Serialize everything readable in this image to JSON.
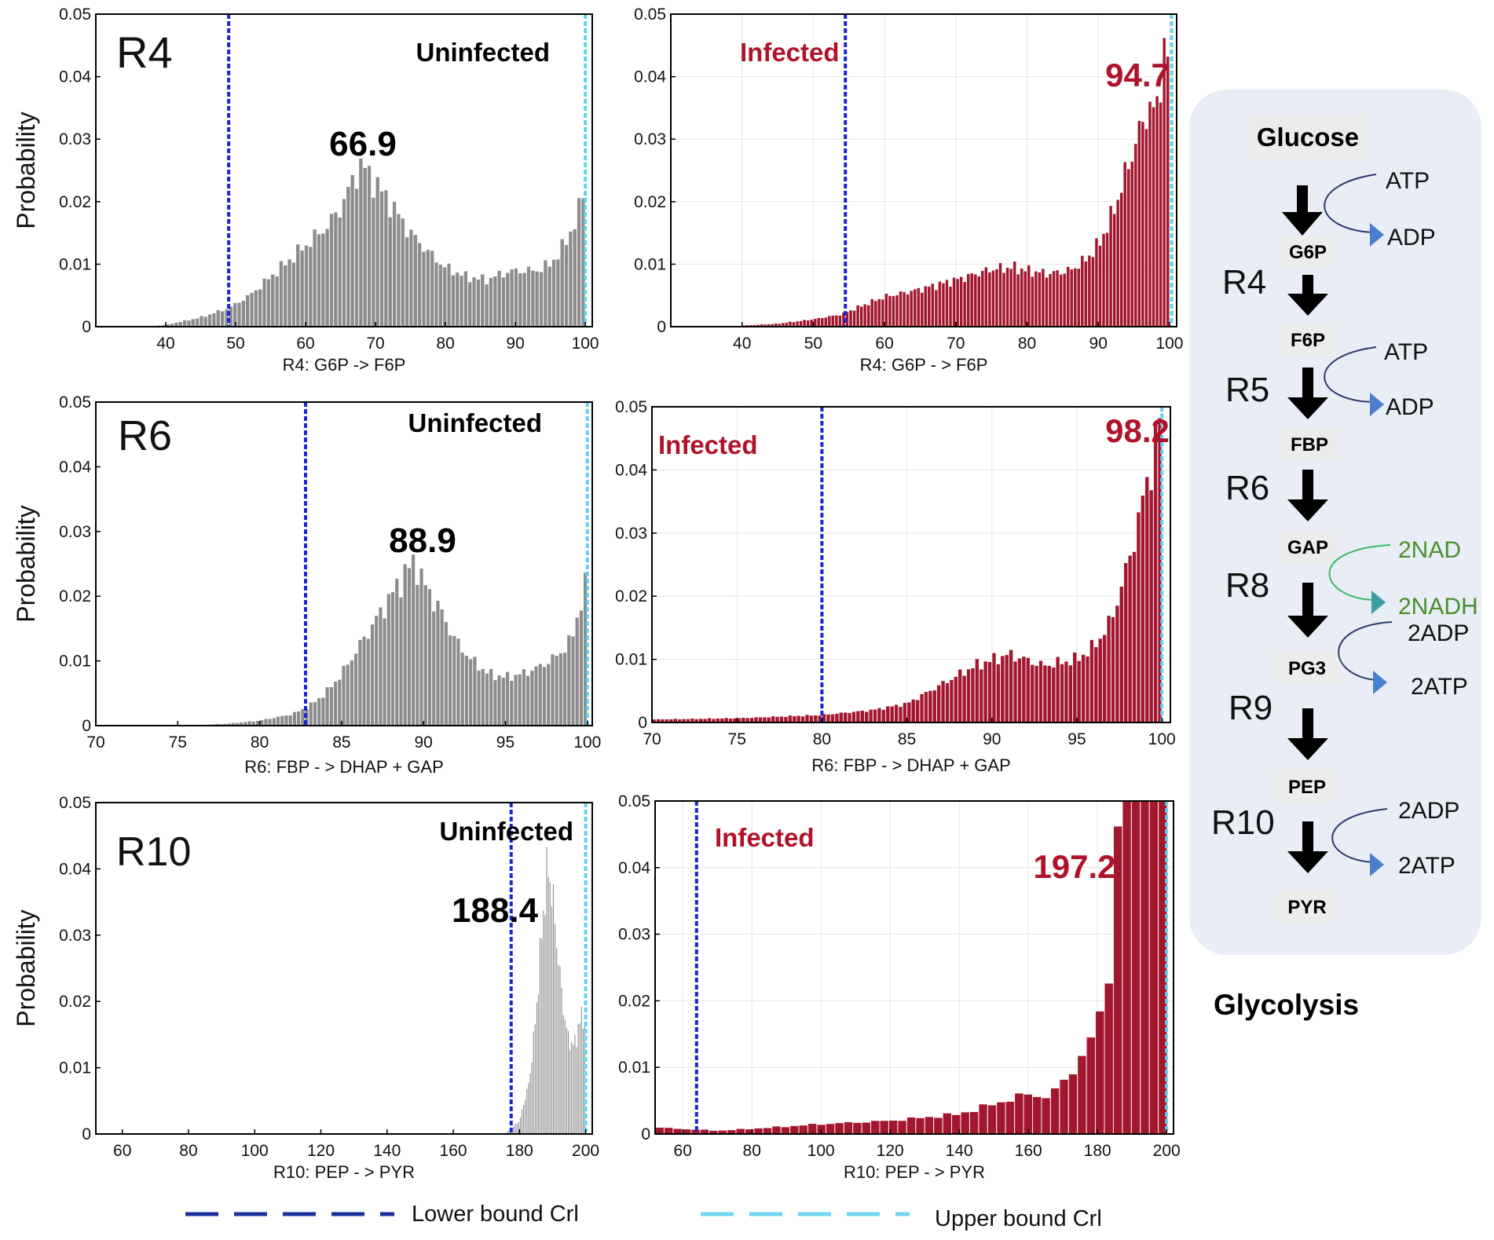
{
  "chart_data": [
    {
      "type": "bar",
      "id": "r4u",
      "panel_label": "R4",
      "condition": "Uninfected",
      "condition_color": "#000000",
      "peak_label": "66.9",
      "peak_color": "#000000",
      "xlabel": "R4: G6P -> F6P",
      "ylabel": "Probability",
      "xlim": [
        30,
        101
      ],
      "ylim": [
        0,
        0.05
      ],
      "xticks": [
        "40",
        "50",
        "60",
        "70",
        "80",
        "90",
        "100"
      ],
      "yticks": [
        "0",
        "0.01",
        "0.02",
        "0.03",
        "0.04",
        "0.05"
      ],
      "color": "#8c8c8c",
      "lower_bound": 49,
      "upper_bound": 100,
      "bin_start": 37,
      "bin_width": 0.6,
      "profile": [
        [
          37,
          0
        ],
        [
          40,
          0.0003
        ],
        [
          45,
          0.0015
        ],
        [
          49,
          0.003
        ],
        [
          52,
          0.005
        ],
        [
          56,
          0.009
        ],
        [
          60,
          0.013
        ],
        [
          63,
          0.016
        ],
        [
          65,
          0.019
        ],
        [
          67,
          0.024
        ],
        [
          68,
          0.026
        ],
        [
          70,
          0.023
        ],
        [
          72,
          0.02
        ],
        [
          75,
          0.015
        ],
        [
          78,
          0.0115
        ],
        [
          80,
          0.0095
        ],
        [
          83,
          0.008
        ],
        [
          86,
          0.0075
        ],
        [
          88,
          0.0085
        ],
        [
          90,
          0.009
        ],
        [
          93,
          0.009
        ],
        [
          95,
          0.01
        ],
        [
          97,
          0.013
        ],
        [
          99,
          0.018
        ],
        [
          100,
          0.023
        ]
      ]
    },
    {
      "type": "bar",
      "id": "r4i",
      "panel_label": "",
      "condition": "Infected",
      "condition_color": "#b0122a",
      "peak_label": "94.7",
      "peak_color": "#b0122a",
      "xlabel": "R4: G6P - > F6P",
      "ylabel": "",
      "xlim": [
        30,
        101
      ],
      "ylim": [
        0,
        0.05
      ],
      "xticks": [
        "40",
        "50",
        "60",
        "70",
        "80",
        "90",
        "100"
      ],
      "yticks": [
        "0",
        "0.01",
        "0.02",
        "0.03",
        "0.04",
        "0.05"
      ],
      "color": "#a3172e",
      "lower_bound": 54.5,
      "upper_bound": 100.3,
      "bin_start": 40,
      "bin_width": 0.5,
      "profile": [
        [
          40,
          0.0002
        ],
        [
          45,
          0.0005
        ],
        [
          50,
          0.0012
        ],
        [
          54,
          0.002
        ],
        [
          56,
          0.003
        ],
        [
          60,
          0.0048
        ],
        [
          65,
          0.006
        ],
        [
          70,
          0.0075
        ],
        [
          75,
          0.0092
        ],
        [
          78,
          0.0095
        ],
        [
          80,
          0.009
        ],
        [
          83,
          0.0085
        ],
        [
          86,
          0.009
        ],
        [
          88,
          0.0105
        ],
        [
          90,
          0.013
        ],
        [
          92,
          0.018
        ],
        [
          94,
          0.025
        ],
        [
          96,
          0.032
        ],
        [
          97,
          0.035
        ],
        [
          98,
          0.034
        ],
        [
          99,
          0.042
        ],
        [
          99.6,
          0.045
        ],
        [
          100,
          0.04
        ]
      ]
    },
    {
      "type": "bar",
      "id": "r6u",
      "panel_label": "R6",
      "condition": "Uninfected",
      "condition_color": "#000000",
      "peak_label": "88.9",
      "peak_color": "#000000",
      "xlabel": "R6: FBP - > DHAP + GAP",
      "ylabel": "Probability",
      "xlim": [
        70,
        100.3
      ],
      "ylim": [
        0,
        0.05
      ],
      "xticks": [
        "70",
        "75",
        "80",
        "85",
        "90",
        "95",
        "100"
      ],
      "yticks": [
        "0",
        "0.01",
        "0.02",
        "0.03",
        "0.04",
        "0.05"
      ],
      "color": "#8c8c8c",
      "lower_bound": 82.8,
      "upper_bound": 100,
      "bin_start": 75,
      "bin_width": 0.25,
      "profile": [
        [
          75,
          0
        ],
        [
          78,
          0.0003
        ],
        [
          80,
          0.0008
        ],
        [
          82,
          0.0018
        ],
        [
          83,
          0.003
        ],
        [
          84,
          0.005
        ],
        [
          85,
          0.008
        ],
        [
          86,
          0.012
        ],
        [
          87,
          0.016
        ],
        [
          88,
          0.02
        ],
        [
          89,
          0.024
        ],
        [
          89.5,
          0.0255
        ],
        [
          90,
          0.022
        ],
        [
          91,
          0.018
        ],
        [
          92,
          0.013
        ],
        [
          93,
          0.01
        ],
        [
          94,
          0.008
        ],
        [
          95,
          0.0075
        ],
        [
          96,
          0.008
        ],
        [
          97,
          0.009
        ],
        [
          98,
          0.0105
        ],
        [
          99,
          0.013
        ],
        [
          99.7,
          0.02
        ],
        [
          100,
          0.022
        ]
      ]
    },
    {
      "type": "bar",
      "id": "r6i",
      "panel_label": "",
      "condition": "Infected",
      "condition_color": "#b0122a",
      "peak_label": "98.2",
      "peak_color": "#b0122a",
      "xlabel": "R6: FBP - > DHAP + GAP",
      "ylabel": "",
      "xlim": [
        70,
        100.5
      ],
      "ylim": [
        0,
        0.05
      ],
      "xticks": [
        "70",
        "75",
        "80",
        "85",
        "90",
        "95",
        "100"
      ],
      "yticks": [
        "0",
        "0.01",
        "0.02",
        "0.03",
        "0.04",
        "0.05"
      ],
      "color": "#a3172e",
      "lower_bound": 80,
      "upper_bound": 100,
      "bin_start": 70,
      "bin_width": 0.25,
      "profile": [
        [
          70,
          0.0005
        ],
        [
          75,
          0.0007
        ],
        [
          80,
          0.0012
        ],
        [
          83,
          0.002
        ],
        [
          85,
          0.003
        ],
        [
          87,
          0.006
        ],
        [
          89,
          0.009
        ],
        [
          91,
          0.0108
        ],
        [
          92,
          0.01
        ],
        [
          93,
          0.009
        ],
        [
          95,
          0.01
        ],
        [
          96,
          0.012
        ],
        [
          97,
          0.016
        ],
        [
          98,
          0.025
        ],
        [
          98.7,
          0.033
        ],
        [
          99.3,
          0.04
        ],
        [
          99.8,
          0.047
        ],
        [
          100,
          0.05
        ]
      ]
    },
    {
      "type": "bar",
      "id": "r10u",
      "panel_label": "R10",
      "condition": "Uninfected",
      "condition_color": "#000000",
      "peak_label": "188.4",
      "peak_color": "#000000",
      "xlabel": "R10: PEP - > PYR",
      "ylabel": "Probability",
      "xlim": [
        52,
        202
      ],
      "ylim": [
        0,
        0.05
      ],
      "xticks": [
        "60",
        "80",
        "100",
        "120",
        "140",
        "160",
        "180",
        "200"
      ],
      "yticks": [
        "0",
        "0.01",
        "0.02",
        "0.03",
        "0.04",
        "0.05"
      ],
      "color": "#8c8c8c",
      "lower_bound": 177.5,
      "upper_bound": 200,
      "bin_start": 170,
      "bin_width": 0.5,
      "profile": [
        [
          170,
          0
        ],
        [
          176,
          0.0002
        ],
        [
          180,
          0.002
        ],
        [
          183,
          0.008
        ],
        [
          185,
          0.018
        ],
        [
          187,
          0.032
        ],
        [
          188.5,
          0.0405
        ],
        [
          190,
          0.036
        ],
        [
          192,
          0.025
        ],
        [
          194,
          0.016
        ],
        [
          196,
          0.013
        ],
        [
          198,
          0.016
        ],
        [
          199,
          0.019
        ],
        [
          200,
          0.015
        ]
      ]
    },
    {
      "type": "bar",
      "id": "r10i",
      "panel_label": "",
      "condition": "Infected",
      "condition_color": "#b0122a",
      "peak_label": "197.2",
      "peak_color": "#b0122a",
      "xlabel": "R10: PEP - > PYR",
      "ylabel": "",
      "xlim": [
        52,
        202
      ],
      "ylim": [
        0,
        0.05
      ],
      "xticks": [
        "60",
        "80",
        "100",
        "120",
        "140",
        "160",
        "180",
        "200"
      ],
      "yticks": [
        "0",
        "0.01",
        "0.02",
        "0.03",
        "0.04",
        "0.05"
      ],
      "color": "#a3172e",
      "lower_bound": 64,
      "upper_bound": 200,
      "bin_start": 52,
      "bin_width": 2.6,
      "profile": [
        [
          52,
          0.001
        ],
        [
          70,
          0.0005
        ],
        [
          80,
          0.0008
        ],
        [
          100,
          0.0015
        ],
        [
          120,
          0.002
        ],
        [
          140,
          0.003
        ],
        [
          150,
          0.0045
        ],
        [
          160,
          0.006
        ],
        [
          166,
          0.0055
        ],
        [
          172,
          0.009
        ],
        [
          176,
          0.012
        ],
        [
          180,
          0.016
        ],
        [
          183,
          0.023
        ],
        [
          186,
          0.045
        ],
        [
          189,
          0.055
        ],
        [
          200,
          0.06
        ]
      ]
    }
  ],
  "legend": {
    "lower": "Lower bound Crl",
    "lower_color": "#1a2f9e",
    "upper": "Upper bound Crl",
    "upper_color": "#72d6ee"
  },
  "pathway": {
    "title": "Glycolysis",
    "metabolites": [
      "Glucose",
      "G6P",
      "F6P",
      "FBP",
      "GAP",
      "PG3",
      "PEP",
      "PYR"
    ],
    "reactions": [
      "R4",
      "R5",
      "R6",
      "R8",
      "R9",
      "R10"
    ],
    "cofactors": [
      {
        "in": "ATP",
        "out": "ADP",
        "color": "#2c3a6b"
      },
      {
        "in": "ATP",
        "out": "ADP",
        "color": "#2c3a6b"
      },
      {
        "in": "2NAD",
        "out": "2NADH",
        "color": "#4a8f2a"
      },
      {
        "in": "2ADP",
        "out": "2ATP",
        "color": "#2c3a6b"
      },
      {
        "in": "2ADP",
        "out": "2ATP",
        "color": "#2c3a6b"
      }
    ]
  }
}
